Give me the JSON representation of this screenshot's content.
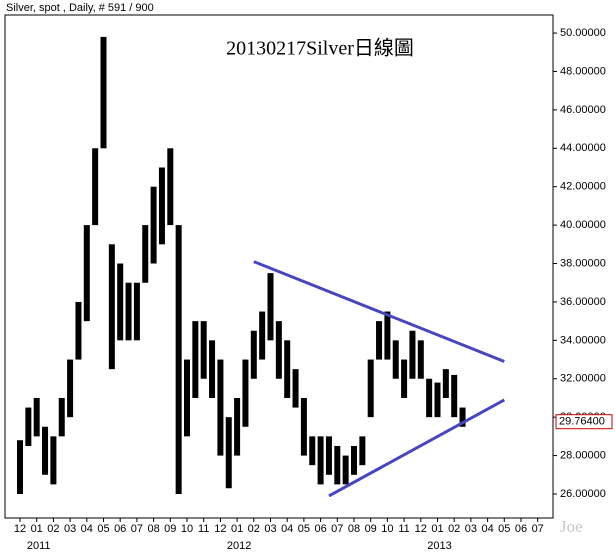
{
  "chart_data": {
    "type": "range",
    "header": "Silver, spot , Daily, # 591 / 900",
    "title": "20130217Silver日線圖",
    "watermark": "Joe",
    "categories": [
      "12",
      null,
      "01",
      null,
      "02",
      null,
      "03",
      null,
      "04",
      null,
      "05",
      null,
      "06",
      null,
      "07",
      null,
      "08",
      null,
      "09",
      null,
      "10",
      null,
      "11",
      null,
      "12",
      null,
      "01",
      null,
      "02",
      null,
      "03",
      null,
      "04",
      null,
      "05",
      null,
      "06",
      null,
      "07",
      null,
      "08",
      null,
      "09",
      null,
      "10",
      null,
      "11",
      null,
      "12",
      null,
      "01",
      null,
      "02",
      null,
      "03",
      null,
      "04",
      null,
      "05",
      null,
      "06",
      null,
      "07",
      null
    ],
    "year_labels": [
      "2011",
      "2012",
      "2013"
    ],
    "low": [
      26.0,
      28.5,
      29.0,
      27.0,
      26.5,
      29.0,
      30.0,
      33.0,
      35.0,
      40.0,
      44.0,
      32.5,
      34.0,
      34.0,
      34.0,
      37.0,
      38.0,
      39.0,
      40.0,
      26.0,
      29.0,
      31.0,
      32.0,
      31.0,
      28.0,
      26.3,
      28.0,
      29.5,
      32.0,
      33.0,
      34.0,
      32.0,
      31.0,
      30.5,
      28.0,
      27.5,
      26.5,
      27.0,
      26.5,
      26.5,
      27.0,
      27.5,
      30.0,
      33.0,
      33.0,
      32.0,
      31.0,
      32.0,
      32.0,
      30.0,
      30.0,
      31.0,
      30.0,
      29.5,
      null,
      null,
      null,
      null,
      null,
      null,
      null,
      null,
      null,
      null
    ],
    "high": [
      28.8,
      30.5,
      31.0,
      29.5,
      29.0,
      31.0,
      33.0,
      36.0,
      40.0,
      44.0,
      49.8,
      39.0,
      38.0,
      37.0,
      37.0,
      40.0,
      42.0,
      43.0,
      44.0,
      40.0,
      33.0,
      35.0,
      35.0,
      34.0,
      33.0,
      30.0,
      31.0,
      33.0,
      34.5,
      35.5,
      37.5,
      35.0,
      34.0,
      32.5,
      31.0,
      29.0,
      29.0,
      29.0,
      28.5,
      28.0,
      28.5,
      29.0,
      33.0,
      35.0,
      35.5,
      34.0,
      33.0,
      34.5,
      34.0,
      32.0,
      31.8,
      32.5,
      32.2,
      30.5,
      null,
      null,
      null,
      null,
      null,
      null,
      null,
      null,
      null,
      null
    ],
    "color": "#000000",
    "trendlines": [
      {
        "x": [
          28,
          58
        ],
        "values": [
          38.1,
          32.9
        ]
      },
      {
        "x": [
          37,
          58
        ],
        "values": [
          25.9,
          30.9
        ]
      }
    ],
    "trendline_color": "#4646c0",
    "last_value": 29.764,
    "last_value_label": "29.76400",
    "ylim": [
      24.75,
      50.94
    ],
    "yticks": [
      {
        "value": 26,
        "label": "26.00000"
      },
      {
        "value": 28,
        "label": "28.00000"
      },
      {
        "value": 30,
        "label": "30.00000"
      },
      {
        "value": 32,
        "label": "32.00000"
      },
      {
        "value": 34,
        "label": "34.00000"
      },
      {
        "value": 36,
        "label": "36.00000"
      },
      {
        "value": 38,
        "label": "38.00000"
      },
      {
        "value": 40,
        "label": "40.00000"
      },
      {
        "value": 42,
        "label": "42.00000"
      },
      {
        "value": 44,
        "label": "44.00000"
      },
      {
        "value": 46,
        "label": "46.00000"
      },
      {
        "value": 48,
        "label": "48.00000"
      },
      {
        "value": 50,
        "label": "50.00000"
      }
    ]
  }
}
